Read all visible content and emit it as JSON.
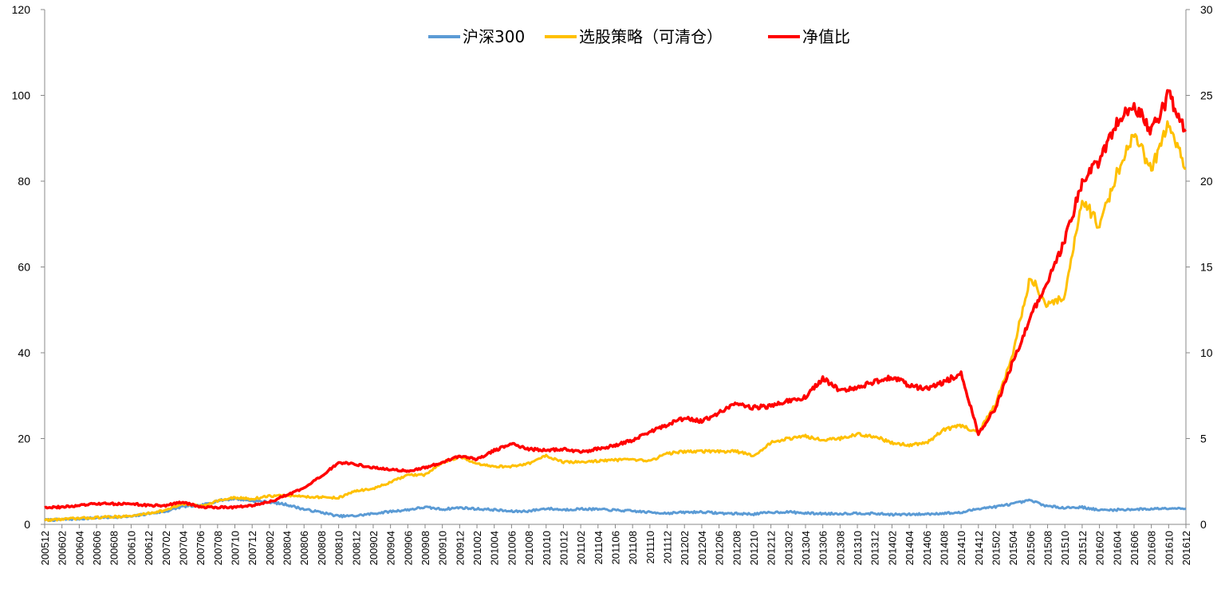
{
  "chart_data": {
    "type": "line",
    "title": "",
    "xlabel": "",
    "ylabel_left": "",
    "ylabel_right": "",
    "left_ylim": [
      0,
      120
    ],
    "left_yticks": [
      "0",
      "20",
      "40",
      "60",
      "80",
      "100",
      "120"
    ],
    "right_ylim": [
      0,
      30
    ],
    "right_yticks": [
      "0",
      "5",
      "10",
      "15",
      "20",
      "25",
      "30"
    ],
    "x_tick_labels": [
      "200512",
      "200602",
      "200604",
      "200606",
      "200608",
      "200610",
      "200612",
      "200702",
      "200704",
      "200706",
      "200708",
      "200710",
      "200712",
      "200802",
      "200804",
      "200806",
      "200808",
      "200810",
      "200812",
      "200902",
      "200904",
      "200906",
      "200908",
      "200910",
      "200912",
      "201002",
      "201004",
      "201006",
      "201008",
      "201010",
      "201012",
      "201102",
      "201104",
      "201106",
      "201108",
      "201110",
      "201112",
      "201202",
      "201204",
      "201206",
      "201208",
      "201210",
      "201212",
      "201302",
      "201304",
      "201306",
      "201308",
      "201310",
      "201312",
      "201402",
      "201404",
      "201406",
      "201408",
      "201410",
      "201412",
      "201502",
      "201504",
      "201506",
      "201508",
      "201510",
      "201512",
      "201602",
      "201604",
      "201606",
      "201608",
      "201610",
      "201612"
    ],
    "grid": false,
    "legend_position": "top-center",
    "series": [
      {
        "name": "沪深300",
        "axis": "left",
        "color": "#5B9BD5",
        "values": [
          1.0,
          1.1,
          1.3,
          1.5,
          1.7,
          1.8,
          2.5,
          3.0,
          4.2,
          4.3,
          5.5,
          6.0,
          5.5,
          5.2,
          4.6,
          3.5,
          2.8,
          1.9,
          2.0,
          2.5,
          3.0,
          3.4,
          4.0,
          3.5,
          3.9,
          3.6,
          3.4,
          3.0,
          3.1,
          3.7,
          3.4,
          3.6,
          3.5,
          3.3,
          3.1,
          2.8,
          2.6,
          2.8,
          2.9,
          2.6,
          2.5,
          2.4,
          2.8,
          2.9,
          2.6,
          2.5,
          2.5,
          2.6,
          2.5,
          2.3,
          2.3,
          2.4,
          2.6,
          2.7,
          3.7,
          4.1,
          4.8,
          5.6,
          4.2,
          3.9,
          4.0,
          3.3,
          3.4,
          3.5,
          3.6,
          3.8,
          3.7
        ]
      },
      {
        "name": "选股策略（可清仓）",
        "axis": "left",
        "color": "#FFC000",
        "values": [
          1.0,
          1.2,
          1.4,
          1.6,
          1.8,
          1.9,
          2.6,
          3.3,
          4.8,
          4.2,
          5.5,
          6.2,
          5.9,
          6.6,
          6.7,
          6.5,
          6.3,
          6.2,
          7.8,
          8.3,
          9.8,
          11.5,
          11.5,
          14.5,
          15.7,
          14.0,
          13.5,
          13.5,
          14.2,
          16.0,
          14.5,
          14.5,
          14.8,
          15.0,
          15.0,
          14.8,
          16.5,
          17.0,
          17.0,
          17.0,
          17.0,
          16.0,
          19.0,
          20.0,
          20.5,
          19.8,
          20.0,
          21.0,
          20.5,
          19.0,
          18.5,
          19.0,
          22.0,
          23.0,
          21.5,
          28.0,
          40.0,
          58.0,
          51.0,
          53.0,
          76.0,
          69.5,
          82.0,
          90.5,
          83.0,
          93.0,
          83.0
        ]
      },
      {
        "name": "净值比",
        "axis": "right",
        "color": "#FF0000",
        "values": [
          1.0,
          1.0,
          1.1,
          1.2,
          1.2,
          1.2,
          1.1,
          1.1,
          1.3,
          1.0,
          1.0,
          1.0,
          1.1,
          1.3,
          1.7,
          2.1,
          2.8,
          3.6,
          3.5,
          3.3,
          3.2,
          3.1,
          3.3,
          3.6,
          4.0,
          3.8,
          4.3,
          4.7,
          4.4,
          4.3,
          4.4,
          4.2,
          4.4,
          4.6,
          4.9,
          5.4,
          5.8,
          6.2,
          6.0,
          6.5,
          7.0,
          6.8,
          6.9,
          7.2,
          7.4,
          8.5,
          7.8,
          8.0,
          8.3,
          8.6,
          8.1,
          7.9,
          8.3,
          8.8,
          5.3,
          6.8,
          9.5,
          12.0,
          14.2,
          16.5,
          20.0,
          21.2,
          23.5,
          24.5,
          22.8,
          25.0,
          23.0
        ]
      }
    ]
  }
}
